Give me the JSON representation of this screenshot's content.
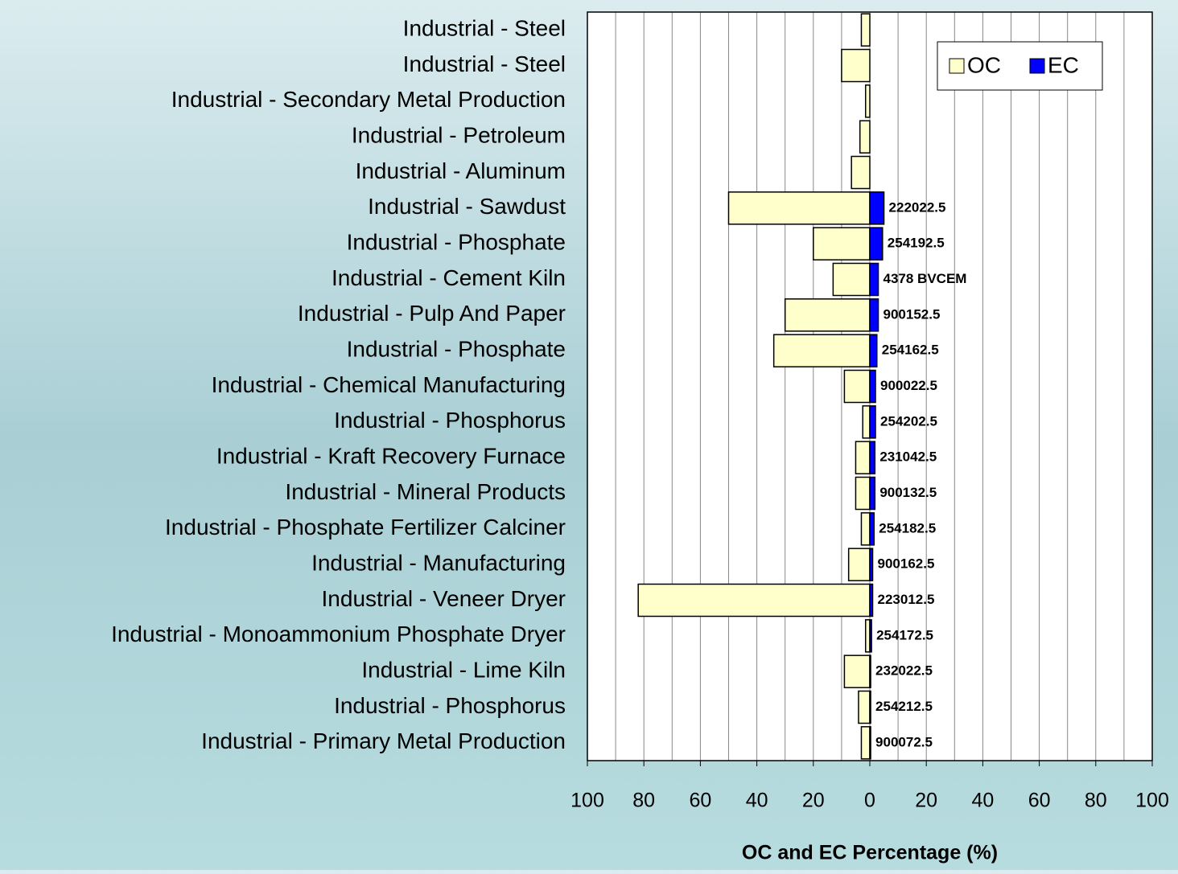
{
  "chart_data": {
    "type": "hbar",
    "xlabel": "OC and EC Percentage (%)",
    "categories": [
      "Industrial - Steel",
      "Industrial - Steel",
      "Industrial - Secondary Metal Production",
      "Industrial - Petroleum",
      "Industrial - Aluminum",
      "Industrial - Sawdust",
      "Industrial - Phosphate",
      "Industrial - Cement Kiln",
      "Industrial - Pulp And Paper",
      "Industrial - Phosphate",
      "Industrial - Chemical Manufacturing",
      "Industrial - Phosphorus",
      "Industrial - Kraft Recovery Furnace",
      "Industrial - Mineral Products",
      "Industrial - Phosphate Fertilizer Calciner",
      "Industrial - Manufacturing",
      "Industrial - Veneer Dryer",
      "Industrial - Monoammonium Phosphate Dryer",
      "Industrial - Lime Kiln",
      "Industrial - Phosphorus",
      "Industrial - Primary Metal Production"
    ],
    "series": [
      {
        "name": "OC",
        "color": "#ffffcc",
        "values": [
          -3,
          -10,
          -1.5,
          -3.5,
          -6.5,
          -50,
          -20,
          -13,
          -30,
          -34,
          -9,
          -2.5,
          -5,
          -5,
          -3,
          -7.5,
          -82,
          -1.5,
          -9,
          -4,
          -3
        ]
      },
      {
        "name": "EC",
        "color": "#0000ff",
        "values": [
          0,
          0,
          0,
          0,
          0,
          5,
          4.5,
          3,
          3,
          2.5,
          2,
          2,
          1.8,
          1.8,
          1.5,
          1,
          1,
          0.6,
          0.3,
          0.3,
          0.3
        ]
      }
    ],
    "annotations": [
      null,
      null,
      null,
      null,
      null,
      "222022.5",
      "254192.5",
      "4378 BVCEM",
      "900152.5",
      "254162.5",
      "900022.5",
      "254202.5",
      "231042.5",
      "900132.5",
      "254182.5",
      "900162.5",
      "223012.5",
      "254172.5",
      "232022.5",
      "254212.5",
      "900072.5"
    ],
    "xlim": [
      -100,
      100
    ],
    "xticks": [
      {
        "value": -100,
        "label": "100"
      },
      {
        "value": -80,
        "label": "80"
      },
      {
        "value": -60,
        "label": "60"
      },
      {
        "value": -40,
        "label": "40"
      },
      {
        "value": -20,
        "label": "20"
      },
      0,
      20,
      40,
      60,
      80,
      100
    ],
    "minor_xticks": [
      -90,
      -70,
      -50,
      -30,
      -10,
      10,
      30,
      50,
      70,
      90
    ],
    "grid": true,
    "legend": "upper right"
  }
}
